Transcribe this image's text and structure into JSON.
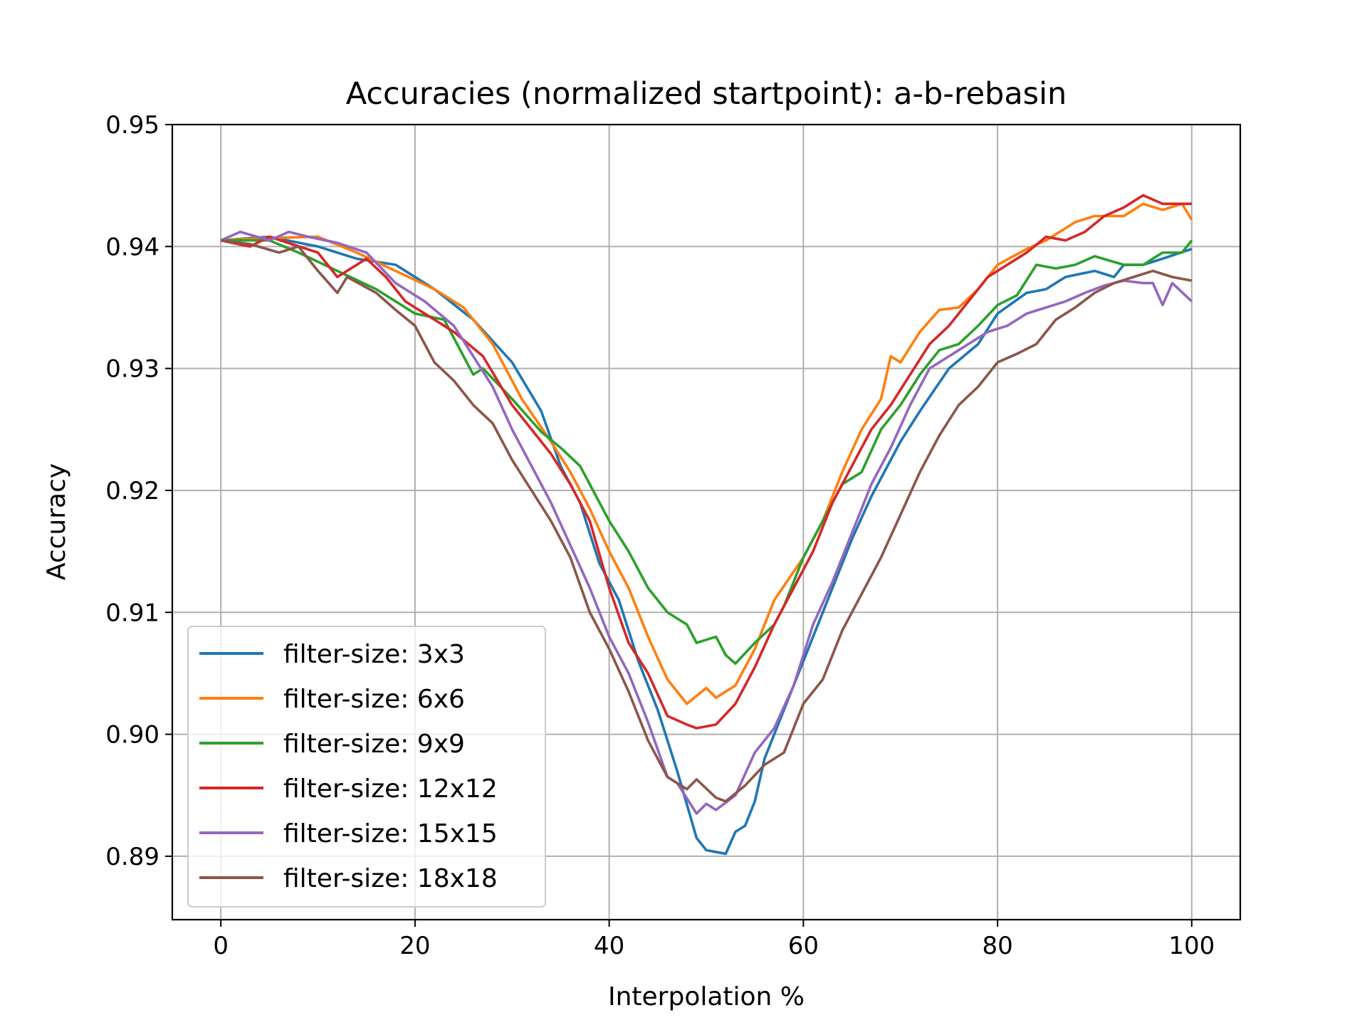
{
  "chart_data": {
    "type": "line",
    "title": "Accuracies (normalized startpoint): a-b-rebasin",
    "xlabel": "Interpolation %",
    "ylabel": "Accuracy",
    "xlim": [
      -5,
      105
    ],
    "ylim": [
      0.8848,
      0.95
    ],
    "xticks": [
      0,
      20,
      40,
      60,
      80,
      100
    ],
    "xtick_labels": [
      "0",
      "20",
      "40",
      "60",
      "80",
      "100"
    ],
    "yticks": [
      0.89,
      0.9,
      0.91,
      0.92,
      0.93,
      0.94,
      0.95
    ],
    "ytick_labels": [
      "0.89",
      "0.90",
      "0.91",
      "0.92",
      "0.93",
      "0.94",
      "0.95"
    ],
    "grid": true,
    "legend_position": "lower-left",
    "x_step": 1,
    "series": [
      {
        "name": "filter-size: 3x3",
        "color": "#1f77b4",
        "anchors": [
          [
            0,
            0.9405
          ],
          [
            5,
            0.9408
          ],
          [
            10,
            0.94
          ],
          [
            14,
            0.939
          ],
          [
            18,
            0.9385
          ],
          [
            22,
            0.9365
          ],
          [
            26,
            0.934
          ],
          [
            30,
            0.9305
          ],
          [
            33,
            0.9265
          ],
          [
            35,
            0.922
          ],
          [
            37,
            0.919
          ],
          [
            39,
            0.914
          ],
          [
            41,
            0.911
          ],
          [
            43,
            0.906
          ],
          [
            45,
            0.902
          ],
          [
            47,
            0.897
          ],
          [
            49,
            0.8915
          ],
          [
            50,
            0.8905
          ],
          [
            52,
            0.8902
          ],
          [
            53,
            0.892
          ],
          [
            54,
            0.8925
          ],
          [
            55,
            0.8945
          ],
          [
            56,
            0.898
          ],
          [
            58,
            0.902
          ],
          [
            60,
            0.906
          ],
          [
            62,
            0.91
          ],
          [
            63,
            0.912
          ],
          [
            65,
            0.916
          ],
          [
            67,
            0.9195
          ],
          [
            70,
            0.924
          ],
          [
            72,
            0.9265
          ],
          [
            75,
            0.93
          ],
          [
            78,
            0.932
          ],
          [
            80,
            0.9345
          ],
          [
            83,
            0.9362
          ],
          [
            85,
            0.9365
          ],
          [
            87,
            0.9375
          ],
          [
            90,
            0.938
          ],
          [
            92,
            0.9375
          ],
          [
            93,
            0.9385
          ],
          [
            95,
            0.9385
          ],
          [
            97,
            0.939
          ],
          [
            100,
            0.9398
          ]
        ]
      },
      {
        "name": "filter-size: 6x6",
        "color": "#ff7f0e",
        "anchors": [
          [
            0,
            0.9405
          ],
          [
            5,
            0.9407
          ],
          [
            10,
            0.9408
          ],
          [
            14,
            0.9395
          ],
          [
            18,
            0.938
          ],
          [
            22,
            0.9365
          ],
          [
            25,
            0.935
          ],
          [
            28,
            0.932
          ],
          [
            31,
            0.9275
          ],
          [
            34,
            0.924
          ],
          [
            36,
            0.9215
          ],
          [
            38,
            0.9185
          ],
          [
            40,
            0.915
          ],
          [
            42,
            0.912
          ],
          [
            44,
            0.908
          ],
          [
            46,
            0.9045
          ],
          [
            48,
            0.9025
          ],
          [
            50,
            0.9038
          ],
          [
            51,
            0.903
          ],
          [
            53,
            0.904
          ],
          [
            55,
            0.907
          ],
          [
            57,
            0.911
          ],
          [
            60,
            0.9145
          ],
          [
            62,
            0.9175
          ],
          [
            64,
            0.9215
          ],
          [
            66,
            0.925
          ],
          [
            68,
            0.9275
          ],
          [
            69,
            0.931
          ],
          [
            70,
            0.9305
          ],
          [
            72,
            0.933
          ],
          [
            74,
            0.9348
          ],
          [
            76,
            0.935
          ],
          [
            78,
            0.9365
          ],
          [
            80,
            0.9385
          ],
          [
            83,
            0.9398
          ],
          [
            85,
            0.9405
          ],
          [
            88,
            0.942
          ],
          [
            90,
            0.9425
          ],
          [
            93,
            0.9425
          ],
          [
            95,
            0.9435
          ],
          [
            97,
            0.943
          ],
          [
            99,
            0.9435
          ],
          [
            100,
            0.9422
          ]
        ]
      },
      {
        "name": "filter-size: 9x9",
        "color": "#2ca02c",
        "anchors": [
          [
            0,
            0.9405
          ],
          [
            5,
            0.9405
          ],
          [
            8,
            0.9395
          ],
          [
            12,
            0.938
          ],
          [
            16,
            0.9365
          ],
          [
            20,
            0.9345
          ],
          [
            23,
            0.934
          ],
          [
            25,
            0.931
          ],
          [
            26,
            0.9295
          ],
          [
            27,
            0.93
          ],
          [
            30,
            0.9275
          ],
          [
            33,
            0.9248
          ],
          [
            35,
            0.9235
          ],
          [
            37,
            0.922
          ],
          [
            38,
            0.9205
          ],
          [
            40,
            0.9175
          ],
          [
            42,
            0.915
          ],
          [
            44,
            0.912
          ],
          [
            46,
            0.91
          ],
          [
            48,
            0.909
          ],
          [
            49,
            0.9075
          ],
          [
            51,
            0.908
          ],
          [
            52,
            0.9065
          ],
          [
            53,
            0.9058
          ],
          [
            55,
            0.9075
          ],
          [
            57,
            0.909
          ],
          [
            58,
            0.9105
          ],
          [
            60,
            0.9145
          ],
          [
            62,
            0.9175
          ],
          [
            64,
            0.9205
          ],
          [
            66,
            0.9215
          ],
          [
            68,
            0.925
          ],
          [
            70,
            0.927
          ],
          [
            72,
            0.9295
          ],
          [
            74,
            0.9315
          ],
          [
            76,
            0.932
          ],
          [
            78,
            0.9335
          ],
          [
            80,
            0.9352
          ],
          [
            82,
            0.936
          ],
          [
            84,
            0.9385
          ],
          [
            86,
            0.9382
          ],
          [
            88,
            0.9385
          ],
          [
            90,
            0.9392
          ],
          [
            93,
            0.9385
          ],
          [
            95,
            0.9385
          ],
          [
            97,
            0.9395
          ],
          [
            99,
            0.9395
          ],
          [
            100,
            0.9405
          ]
        ]
      },
      {
        "name": "filter-size: 12x12",
        "color": "#d62728",
        "anchors": [
          [
            0,
            0.9405
          ],
          [
            3,
            0.94
          ],
          [
            5,
            0.9408
          ],
          [
            10,
            0.9395
          ],
          [
            12,
            0.9375
          ],
          [
            15,
            0.939
          ],
          [
            17,
            0.9375
          ],
          [
            19,
            0.9355
          ],
          [
            21,
            0.9345
          ],
          [
            24,
            0.933
          ],
          [
            27,
            0.931
          ],
          [
            30,
            0.927
          ],
          [
            32,
            0.925
          ],
          [
            34,
            0.923
          ],
          [
            36,
            0.9205
          ],
          [
            38,
            0.9175
          ],
          [
            40,
            0.912
          ],
          [
            42,
            0.9075
          ],
          [
            44,
            0.905
          ],
          [
            46,
            0.9015
          ],
          [
            48,
            0.9008
          ],
          [
            49,
            0.9005
          ],
          [
            51,
            0.9008
          ],
          [
            53,
            0.9025
          ],
          [
            55,
            0.9055
          ],
          [
            57,
            0.909
          ],
          [
            59,
            0.912
          ],
          [
            61,
            0.915
          ],
          [
            63,
            0.919
          ],
          [
            65,
            0.922
          ],
          [
            67,
            0.925
          ],
          [
            69,
            0.927
          ],
          [
            71,
            0.9295
          ],
          [
            73,
            0.932
          ],
          [
            75,
            0.9335
          ],
          [
            77,
            0.9355
          ],
          [
            79,
            0.9375
          ],
          [
            81,
            0.9385
          ],
          [
            83,
            0.9395
          ],
          [
            85,
            0.9408
          ],
          [
            87,
            0.9405
          ],
          [
            89,
            0.9412
          ],
          [
            91,
            0.9425
          ],
          [
            93,
            0.9432
          ],
          [
            95,
            0.9442
          ],
          [
            97,
            0.9435
          ],
          [
            100,
            0.9435
          ]
        ]
      },
      {
        "name": "filter-size: 15x15",
        "color": "#9467bd",
        "anchors": [
          [
            0,
            0.9405
          ],
          [
            2,
            0.9412
          ],
          [
            5,
            0.9405
          ],
          [
            7,
            0.9412
          ],
          [
            9,
            0.9408
          ],
          [
            12,
            0.9403
          ],
          [
            15,
            0.9395
          ],
          [
            18,
            0.937
          ],
          [
            21,
            0.9355
          ],
          [
            24,
            0.9335
          ],
          [
            26,
            0.931
          ],
          [
            28,
            0.9285
          ],
          [
            30,
            0.925
          ],
          [
            32,
            0.922
          ],
          [
            34,
            0.919
          ],
          [
            36,
            0.9155
          ],
          [
            38,
            0.912
          ],
          [
            40,
            0.908
          ],
          [
            42,
            0.905
          ],
          [
            44,
            0.901
          ],
          [
            46,
            0.8965
          ],
          [
            47,
            0.896
          ],
          [
            49,
            0.8935
          ],
          [
            50,
            0.8943
          ],
          [
            51,
            0.8938
          ],
          [
            53,
            0.895
          ],
          [
            55,
            0.8985
          ],
          [
            57,
            0.9005
          ],
          [
            59,
            0.904
          ],
          [
            61,
            0.909
          ],
          [
            63,
            0.9125
          ],
          [
            65,
            0.9165
          ],
          [
            67,
            0.9205
          ],
          [
            69,
            0.9235
          ],
          [
            71,
            0.927
          ],
          [
            73,
            0.93
          ],
          [
            75,
            0.931
          ],
          [
            77,
            0.932
          ],
          [
            79,
            0.933
          ],
          [
            81,
            0.9335
          ],
          [
            83,
            0.9345
          ],
          [
            85,
            0.935
          ],
          [
            87,
            0.9355
          ],
          [
            89,
            0.9362
          ],
          [
            91,
            0.9368
          ],
          [
            93,
            0.9372
          ],
          [
            95,
            0.937
          ],
          [
            96,
            0.937
          ],
          [
            97,
            0.9352
          ],
          [
            98,
            0.937
          ],
          [
            100,
            0.9355
          ]
        ]
      },
      {
        "name": "filter-size: 18x18",
        "color": "#8c564b",
        "anchors": [
          [
            0,
            0.9405
          ],
          [
            3,
            0.9402
          ],
          [
            6,
            0.9395
          ],
          [
            8,
            0.94
          ],
          [
            10,
            0.938
          ],
          [
            12,
            0.9362
          ],
          [
            13,
            0.9375
          ],
          [
            16,
            0.9362
          ],
          [
            18,
            0.9348
          ],
          [
            20,
            0.9335
          ],
          [
            22,
            0.9305
          ],
          [
            24,
            0.929
          ],
          [
            26,
            0.927
          ],
          [
            28,
            0.9255
          ],
          [
            30,
            0.9225
          ],
          [
            32,
            0.92
          ],
          [
            34,
            0.9175
          ],
          [
            36,
            0.9145
          ],
          [
            38,
            0.91
          ],
          [
            40,
            0.907
          ],
          [
            42,
            0.9035
          ],
          [
            44,
            0.8995
          ],
          [
            46,
            0.8965
          ],
          [
            48,
            0.8955
          ],
          [
            49,
            0.8963
          ],
          [
            51,
            0.8948
          ],
          [
            52,
            0.8945
          ],
          [
            54,
            0.8958
          ],
          [
            56,
            0.8975
          ],
          [
            58,
            0.8985
          ],
          [
            60,
            0.9025
          ],
          [
            62,
            0.9045
          ],
          [
            64,
            0.9085
          ],
          [
            66,
            0.9115
          ],
          [
            68,
            0.9145
          ],
          [
            70,
            0.918
          ],
          [
            72,
            0.9215
          ],
          [
            74,
            0.9245
          ],
          [
            76,
            0.927
          ],
          [
            78,
            0.9285
          ],
          [
            80,
            0.9305
          ],
          [
            82,
            0.9312
          ],
          [
            84,
            0.932
          ],
          [
            86,
            0.934
          ],
          [
            88,
            0.935
          ],
          [
            90,
            0.9362
          ],
          [
            92,
            0.937
          ],
          [
            94,
            0.9375
          ],
          [
            96,
            0.938
          ],
          [
            98,
            0.9375
          ],
          [
            100,
            0.9372
          ]
        ]
      }
    ]
  }
}
